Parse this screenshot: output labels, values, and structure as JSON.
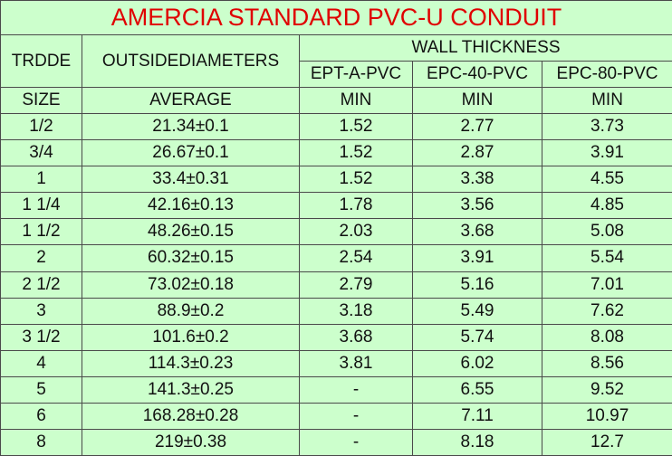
{
  "title": "AMERCIA STANDARD PVC-U CONDUIT",
  "header": {
    "size_col": "TRDDE",
    "diameter_col": "OUTSIDEDIAMETERS",
    "group": "WALL THICKNESS",
    "subcols": [
      "EPT-A-PVC",
      "EPC-40-PVC",
      "EPC-80-PVC"
    ]
  },
  "units": [
    "SIZE",
    "AVERAGE",
    "MIN",
    "MIN",
    "MIN"
  ],
  "rows": [
    [
      "1/2",
      "21.34±0.1",
      1.52,
      2.77,
      3.73
    ],
    [
      "3/4",
      "26.67±0.1",
      1.52,
      2.87,
      3.91
    ],
    [
      "1",
      "33.4±0.31",
      1.52,
      3.38,
      4.55
    ],
    [
      "1 1/4",
      "42.16±0.13",
      1.78,
      3.56,
      4.85
    ],
    [
      "1 1/2",
      "48.26±0.15",
      2.03,
      3.68,
      5.08
    ],
    [
      "2",
      "60.32±0.15",
      2.54,
      3.91,
      5.54
    ],
    [
      "2 1/2",
      "73.02±0.18",
      2.79,
      5.16,
      7.01
    ],
    [
      "3",
      "88.9±0.2",
      3.18,
      5.49,
      7.62
    ],
    [
      "3 1/2",
      "101.6±0.2",
      3.68,
      5.74,
      8.08
    ],
    [
      "4",
      "114.3±0.23",
      3.81,
      6.02,
      8.56
    ],
    [
      "5",
      "141.3±0.25",
      "-",
      6.55,
      9.52
    ],
    [
      "6",
      "168.28±0.28",
      "-",
      7.11,
      10.97
    ],
    [
      "8",
      "219±0.38",
      "-",
      8.18,
      12.7
    ]
  ]
}
